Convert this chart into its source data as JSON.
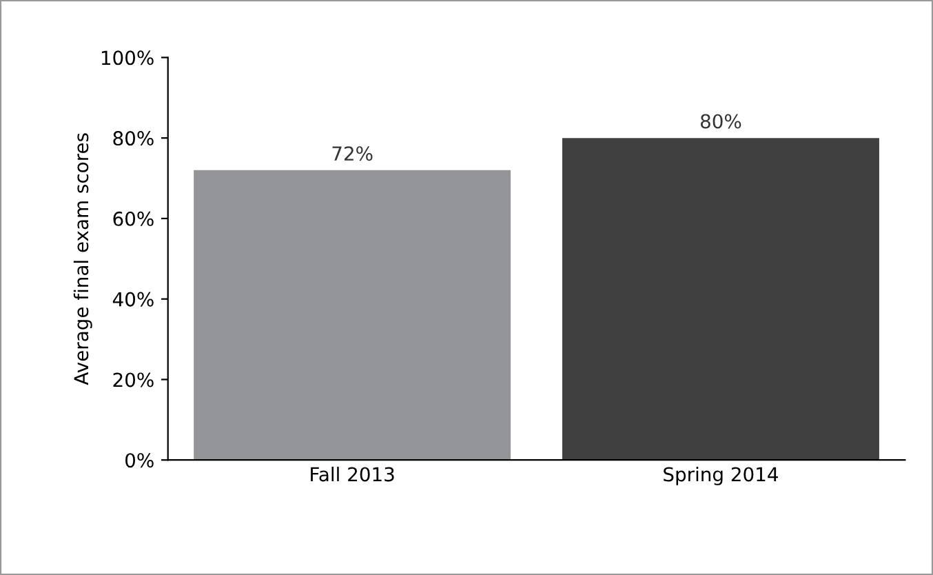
{
  "chart_data": {
    "type": "bar",
    "ylabel": "Average final exam scores",
    "categories": [
      "Fall 2013",
      "Spring 2014"
    ],
    "values": [
      72,
      80
    ],
    "colors": [
      "#939598",
      "#404041"
    ],
    "value_labels": [
      "72%",
      "80%"
    ],
    "ylim": [
      0,
      100
    ],
    "yticks": [
      {
        "value": 0,
        "label": "0%"
      },
      {
        "value": 20,
        "label": "20%"
      },
      {
        "value": 40,
        "label": "40%"
      },
      {
        "value": 60,
        "label": "60%"
      },
      {
        "value": 80,
        "label": "80%"
      },
      {
        "value": 100,
        "label": "100%"
      }
    ],
    "grid": false,
    "legend": false
  }
}
